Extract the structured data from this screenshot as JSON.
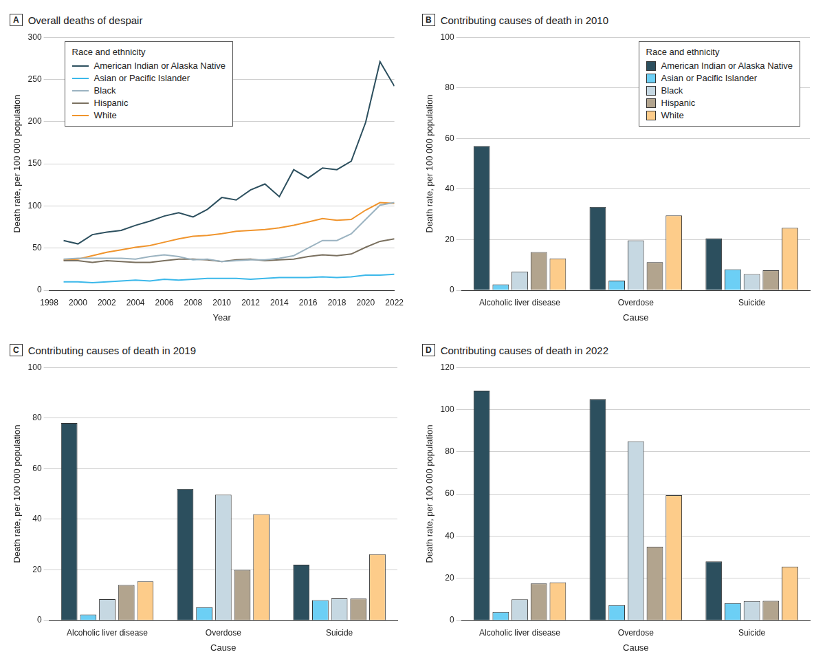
{
  "chart_data": [
    {
      "type": "line",
      "panel_label": "A",
      "title": "Overall deaths of despair",
      "x_label": "Year",
      "y_label": "Death rate, per 100 000 population",
      "x": [
        1999,
        2000,
        2001,
        2002,
        2003,
        2004,
        2005,
        2006,
        2007,
        2008,
        2009,
        2010,
        2011,
        2012,
        2013,
        2014,
        2015,
        2016,
        2017,
        2018,
        2019,
        2020,
        2021,
        2022
      ],
      "series": [
        {
          "name": "American Indian or Alaska Native",
          "color": "#2c4f5e",
          "values": [
            59,
            55,
            66,
            69,
            71,
            77,
            82,
            88,
            92,
            87,
            96,
            110,
            107,
            119,
            126,
            111,
            143,
            133,
            145,
            143,
            153,
            199,
            271,
            242
          ]
        },
        {
          "name": "Asian or Pacific Islander",
          "color": "#3bb8ea",
          "values": [
            10,
            10,
            9,
            10,
            11,
            12,
            11,
            13,
            12,
            13,
            14,
            14,
            14,
            13,
            14,
            15,
            15,
            15,
            16,
            15,
            16,
            18,
            18,
            19
          ]
        },
        {
          "name": "Black",
          "color": "#9bb3c1",
          "values": [
            37,
            38,
            38,
            38,
            38,
            37,
            40,
            42,
            40,
            36,
            37,
            34,
            35,
            36,
            36,
            38,
            41,
            50,
            59,
            59,
            67,
            84,
            101,
            104
          ]
        },
        {
          "name": "Hispanic",
          "color": "#7a705f",
          "values": [
            35,
            35,
            33,
            35,
            34,
            33,
            33,
            35,
            37,
            37,
            36,
            34,
            36,
            37,
            35,
            36,
            37,
            40,
            42,
            41,
            43,
            51,
            58,
            61
          ]
        },
        {
          "name": "White",
          "color": "#f0942c",
          "values": [
            36,
            37,
            41,
            45,
            48,
            51,
            53,
            57,
            61,
            64,
            65,
            67,
            70,
            71,
            72,
            74,
            77,
            81,
            85,
            83,
            84,
            95,
            104,
            103
          ]
        }
      ],
      "xlim": [
        1998,
        2022
      ],
      "xticks": [
        1998,
        2000,
        2002,
        2004,
        2006,
        2008,
        2010,
        2012,
        2014,
        2016,
        2018,
        2020,
        2022
      ],
      "ylim": [
        0,
        300
      ],
      "yticks": [
        0,
        50,
        100,
        150,
        200,
        250,
        300
      ],
      "grid": true,
      "legend": "upper left",
      "legend_title": "Race and ethnicity"
    },
    {
      "type": "bar",
      "panel_label": "B",
      "title": "Contributing causes of death in 2010",
      "x_label": "Cause",
      "y_label": "Death rate, per 100 000 population",
      "categories": [
        "Alcoholic liver disease",
        "Overdose",
        "Suicide"
      ],
      "series": [
        {
          "name": "American Indian or Alaska Native",
          "color": "#2c4f5e",
          "values": [
            57,
            33,
            20.5
          ]
        },
        {
          "name": "Asian or Pacific Islander",
          "color": "#6ccff5",
          "values": [
            2.3,
            3.8,
            8.3
          ]
        },
        {
          "name": "Black",
          "color": "#c6d8e2",
          "values": [
            7.4,
            19.7,
            6.4
          ]
        },
        {
          "name": "Hispanic",
          "color": "#b2a48e",
          "values": [
            15.1,
            11.1,
            7.9
          ]
        },
        {
          "name": "White",
          "color": "#fdcc8a",
          "values": [
            12.6,
            29.6,
            24.7
          ]
        }
      ],
      "ylim": [
        0,
        100
      ],
      "yticks": [
        0,
        20,
        40,
        60,
        80,
        100
      ],
      "grid": true,
      "legend": "upper right",
      "legend_title": "Race and ethnicity"
    },
    {
      "type": "bar",
      "panel_label": "C",
      "title": "Contributing causes of death in 2019",
      "x_label": "Cause",
      "y_label": "Death rate, per 100 000 population",
      "categories": [
        "Alcoholic liver disease",
        "Overdose",
        "Suicide"
      ],
      "series": [
        {
          "name": "American Indian or Alaska Native",
          "color": "#2c4f5e",
          "values": [
            78,
            52,
            22
          ]
        },
        {
          "name": "Asian or Pacific Islander",
          "color": "#6ccff5",
          "values": [
            2.3,
            5.2,
            8
          ]
        },
        {
          "name": "Black",
          "color": "#c6d8e2",
          "values": [
            8.4,
            49.7,
            8.7
          ]
        },
        {
          "name": "Hispanic",
          "color": "#b2a48e",
          "values": [
            14,
            20,
            8.6
          ]
        },
        {
          "name": "White",
          "color": "#fdcc8a",
          "values": [
            15.4,
            42,
            26.2
          ]
        }
      ],
      "ylim": [
        0,
        100
      ],
      "yticks": [
        0,
        20,
        40,
        60,
        80,
        100
      ],
      "grid": true
    },
    {
      "type": "bar",
      "panel_label": "D",
      "title": "Contributing causes of death in 2022",
      "x_label": "Cause",
      "y_label": "Death rate, per 100 000 population",
      "categories": [
        "Alcoholic liver disease",
        "Overdose",
        "Suicide"
      ],
      "series": [
        {
          "name": "American Indian or Alaska Native",
          "color": "#2c4f5e",
          "values": [
            109,
            105,
            28
          ]
        },
        {
          "name": "Asian or Pacific Islander",
          "color": "#6ccff5",
          "values": [
            4,
            7.3,
            8.2
          ]
        },
        {
          "name": "Black",
          "color": "#c6d8e2",
          "values": [
            10,
            85,
            9.2
          ]
        },
        {
          "name": "Hispanic",
          "color": "#b2a48e",
          "values": [
            17.5,
            35,
            9.3
          ]
        },
        {
          "name": "White",
          "color": "#fdcc8a",
          "values": [
            18,
            59.4,
            25.5
          ]
        }
      ],
      "ylim": [
        0,
        120
      ],
      "yticks": [
        0,
        20,
        40,
        60,
        80,
        100,
        120
      ],
      "grid": true
    }
  ]
}
